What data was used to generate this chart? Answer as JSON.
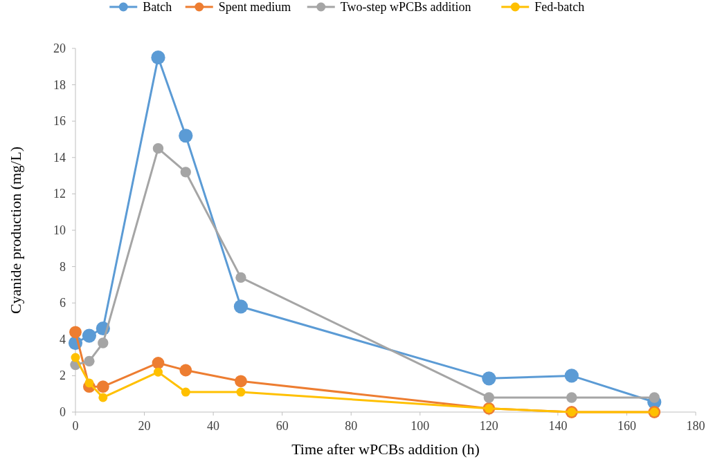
{
  "chart_data": {
    "type": "line",
    "xlabel": "Time after wPCBs addition (h)",
    "ylabel": "Cyanide production (mg/L)",
    "x": [
      0,
      4,
      8,
      24,
      32,
      48,
      120,
      144,
      168
    ],
    "series": [
      {
        "name": "Batch",
        "color": "#5b9bd5",
        "values": [
          3.8,
          4.2,
          4.6,
          19.5,
          15.2,
          5.8,
          1.85,
          2.0,
          0.55
        ]
      },
      {
        "name": "Spent medium",
        "color": "#ed7d31",
        "values": [
          4.4,
          1.4,
          1.4,
          2.7,
          2.3,
          1.7,
          0.2,
          0,
          0
        ]
      },
      {
        "name": "Two-step wPCBs addition",
        "color": "#a5a5a5",
        "values": [
          2.6,
          2.8,
          3.8,
          14.5,
          13.2,
          7.4,
          0.8,
          0.8,
          0.8
        ]
      },
      {
        "name": "Fed-batch",
        "color": "#ffc000",
        "values": [
          3.0,
          1.6,
          0.8,
          2.2,
          1.1,
          1.1,
          0.2,
          0,
          0
        ]
      }
    ],
    "xlim": [
      0,
      180
    ],
    "xticks": [
      0,
      20,
      40,
      60,
      80,
      100,
      120,
      140,
      160,
      180
    ],
    "ylim": [
      0,
      20
    ],
    "yticks": [
      0,
      2,
      4,
      6,
      8,
      10,
      12,
      14,
      16,
      18,
      20
    ],
    "legend": "top",
    "marker": "circle",
    "line_style": "solid",
    "grid": false
  }
}
